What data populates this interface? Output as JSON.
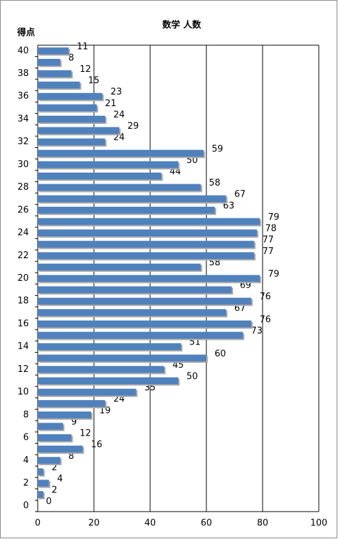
{
  "chart_data": {
    "type": "bar",
    "orientation": "horizontal",
    "title": "数学 人数",
    "y_axis_label": "得点",
    "categories": [
      "0",
      null,
      "2",
      null,
      "4",
      null,
      "6",
      null,
      "8",
      null,
      "10",
      null,
      "12",
      null,
      "14",
      null,
      "16",
      null,
      "18",
      null,
      "20",
      null,
      "22",
      null,
      "24",
      null,
      "26",
      null,
      "28",
      null,
      "30",
      null,
      "32",
      null,
      "34",
      null,
      "36",
      null,
      "38",
      null,
      "40"
    ],
    "values": [
      0,
      2,
      4,
      2,
      8,
      16,
      12,
      9,
      19,
      24,
      35,
      50,
      45,
      60,
      51,
      73,
      76,
      67,
      76,
      69,
      79,
      58,
      77,
      77,
      78,
      79,
      63,
      67,
      58,
      44,
      50,
      59,
      24,
      29,
      24,
      21,
      23,
      15,
      12,
      8,
      11
    ],
    "color": "#4f81bd",
    "xlim": [
      0,
      100
    ],
    "xticks": [
      0,
      20,
      40,
      60,
      80,
      100
    ],
    "grid": true
  }
}
